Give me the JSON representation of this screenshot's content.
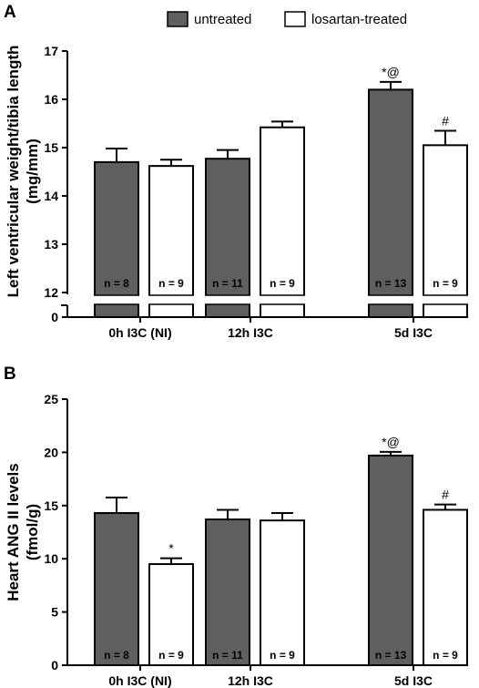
{
  "legend": [
    {
      "label": "untreated",
      "color": "#5f5f5f"
    },
    {
      "label": "losartan-treated",
      "color": "#ffffff"
    }
  ],
  "chart_data": [
    {
      "panel": "A",
      "type": "bar",
      "ylabel": "Left ventricular weight/tibia length (mg/mm)",
      "ylabel_lines": [
        "Left ventricular weight/tibia length",
        "(mg/mm)"
      ],
      "ylim": [
        12,
        17
      ],
      "axis_break": true,
      "yticks": [
        12,
        13,
        14,
        15,
        16,
        17
      ],
      "ytick_labels": [
        "12",
        "13",
        "14",
        "15",
        "16",
        "17"
      ],
      "extra_tick": {
        "label": "0",
        "value": 0
      },
      "categories": [
        "0h I3C (NI)",
        "12h I3C",
        "5d I3C"
      ],
      "series": [
        {
          "name": "untreated",
          "values": [
            14.7,
            14.77,
            16.2
          ],
          "errors": [
            0.28,
            0.18,
            0.16
          ],
          "n": [
            "n = 8",
            "n = 11",
            "n = 13"
          ],
          "markers": [
            "",
            "",
            "*@"
          ]
        },
        {
          "name": "losartan-treated",
          "values": [
            14.62,
            15.42,
            15.05
          ],
          "errors": [
            0.13,
            0.12,
            0.3
          ],
          "n": [
            "n = 9",
            "n = 9",
            "n = 9"
          ],
          "markers": [
            "",
            "",
            "#"
          ]
        }
      ]
    },
    {
      "panel": "B",
      "type": "bar",
      "ylabel": "Heart ANG II levels (fmol/g)",
      "ylabel_lines": [
        "Heart ANG II levels",
        "(fmol/g)"
      ],
      "ylim": [
        0,
        25
      ],
      "yticks": [
        0,
        5,
        10,
        15,
        20,
        25
      ],
      "ytick_labels": [
        "0",
        "5",
        "10",
        "15",
        "20",
        "25"
      ],
      "categories": [
        "0h I3C (NI)",
        "12h I3C",
        "5d I3C"
      ],
      "series": [
        {
          "name": "untreated",
          "values": [
            14.3,
            13.7,
            19.7
          ],
          "errors": [
            1.45,
            0.9,
            0.35
          ],
          "n": [
            "n = 8",
            "n = 11",
            "n = 13"
          ],
          "markers": [
            "",
            "",
            "*@"
          ]
        },
        {
          "name": "losartan-treated",
          "values": [
            9.5,
            13.6,
            14.6
          ],
          "errors": [
            0.55,
            0.7,
            0.5
          ],
          "n": [
            "n = 9",
            "n = 9",
            "n = 9"
          ],
          "markers": [
            "*",
            "",
            "#"
          ]
        }
      ]
    }
  ]
}
